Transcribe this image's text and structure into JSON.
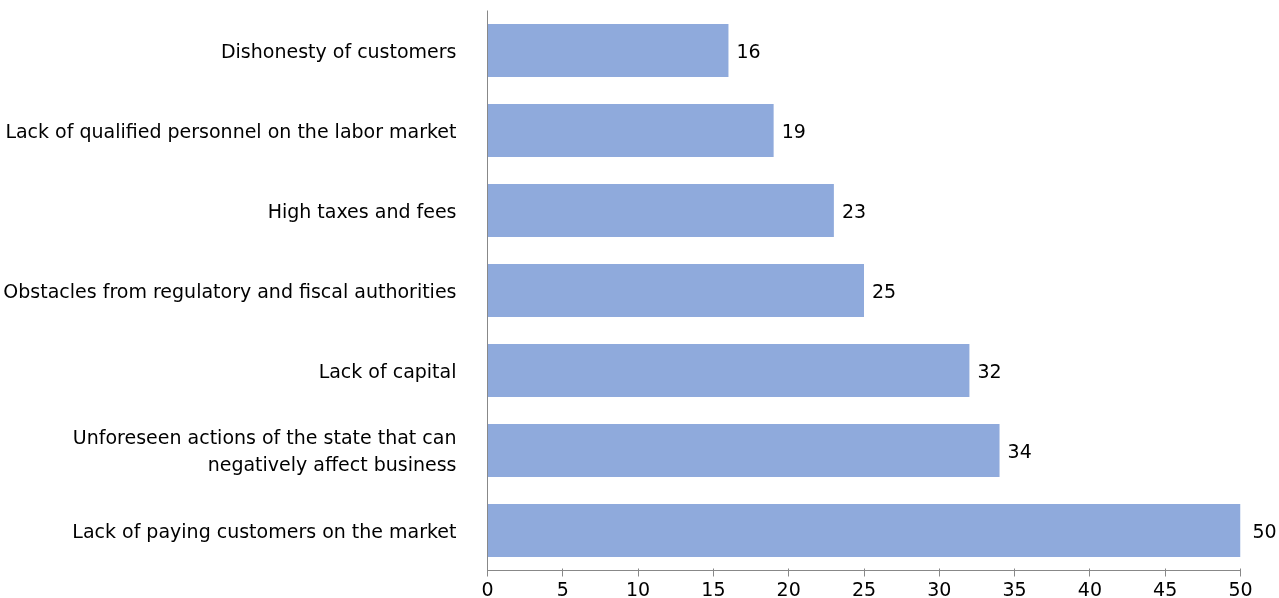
{
  "chart_data": {
    "type": "bar",
    "orientation": "horizontal",
    "categories": [
      "Dishonesty of customers",
      "Lack of qualified personnel on the labor market",
      "High taxes and fees",
      "Obstacles from regulatory and fiscal authorities",
      "Lack of capital",
      "Unforeseen actions of the state that can\nnegatively affect business",
      "Lack of paying customers on the market"
    ],
    "values": [
      16,
      19,
      23,
      25,
      32,
      34,
      50
    ],
    "color": "#8faadc",
    "xlim": [
      0,
      50
    ],
    "xticks": [
      0,
      5,
      10,
      15,
      20,
      25,
      30,
      35,
      40,
      45,
      50
    ],
    "data_labels": true,
    "grid": false
  }
}
